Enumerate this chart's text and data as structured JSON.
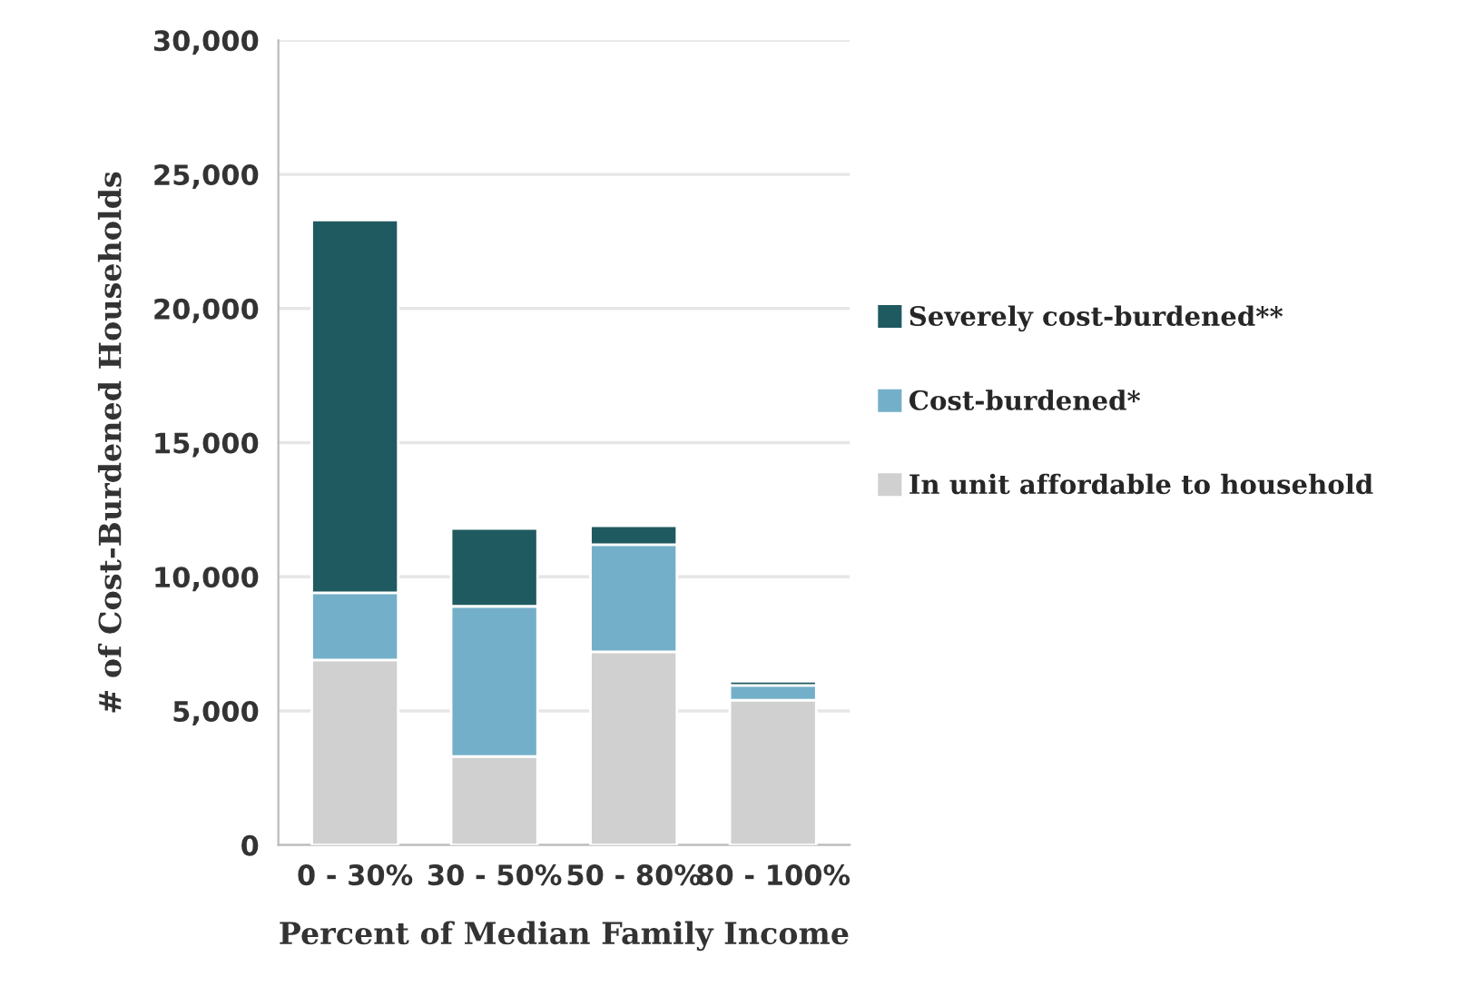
{
  "chart_data": {
    "type": "bar",
    "stacked": true,
    "xlabel": "Percent of Median Family Income",
    "ylabel": "# of Cost-Burdened Households",
    "categories": [
      "0 - 30%",
      "30 - 50%",
      "50 - 80%",
      "80 - 100%"
    ],
    "series": [
      {
        "name": "In unit affordable to household",
        "color": "#d0d0d0",
        "values": [
          6900,
          3300,
          7200,
          5400
        ]
      },
      {
        "name": "Cost-burdened*",
        "color": "#74afc9",
        "values": [
          2500,
          5600,
          4000,
          550
        ]
      },
      {
        "name": "Severely cost-burdened**",
        "color": "#1f5a60",
        "values": [
          13900,
          2900,
          700,
          150
        ]
      }
    ],
    "ylim": [
      0,
      30000
    ],
    "yticks": [
      {
        "value": 0,
        "label": "0"
      },
      {
        "value": 5000,
        "label": "5,000"
      },
      {
        "value": 10000,
        "label": "10,000"
      },
      {
        "value": 15000,
        "label": "15,000"
      },
      {
        "value": 20000,
        "label": "20,000"
      },
      {
        "value": 25000,
        "label": "25,000"
      },
      {
        "value": 30000,
        "label": "30,000"
      }
    ],
    "grid": "y",
    "legend": "right"
  }
}
